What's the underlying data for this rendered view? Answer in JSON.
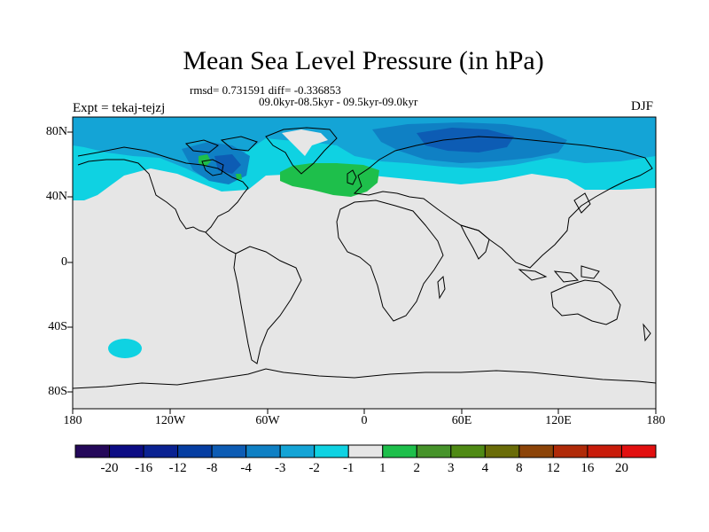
{
  "title": "Mean Sea Level Pressure (in hPa)",
  "stats_line": "rmsd= 0.731591 diff= -0.336853",
  "period_line": "09.0kyr-08.5kyr - 09.5kyr-09.0kyr",
  "expt_label": "Expt = tekaj-tejzj",
  "season_label": "DJF",
  "lat_ticks": [
    "80N",
    "40N",
    "0",
    "40S",
    "80S"
  ],
  "lon_ticks": [
    "180",
    "120W",
    "60W",
    "0",
    "60E",
    "120E",
    "180"
  ],
  "colorbar": {
    "labels": [
      "-20",
      "-16",
      "-12",
      "-8",
      "-4",
      "-3",
      "-2",
      "-1",
      "1",
      "2",
      "3",
      "4",
      "8",
      "12",
      "16",
      "20"
    ],
    "colors": [
      "#24085a",
      "#0c0c84",
      "#0a2292",
      "#063ea2",
      "#0d5cb4",
      "#0f80c4",
      "#14a4d6",
      "#0fd2e2",
      "#e6e6e6",
      "#1ebf4b",
      "#46932a",
      "#4f8a14",
      "#6a6c08",
      "#8c4408",
      "#b02a08",
      "#c81c0a",
      "#e21010"
    ]
  },
  "colors": {
    "land_and_neutral": "#e6e6e6",
    "coast": "#000000"
  }
}
